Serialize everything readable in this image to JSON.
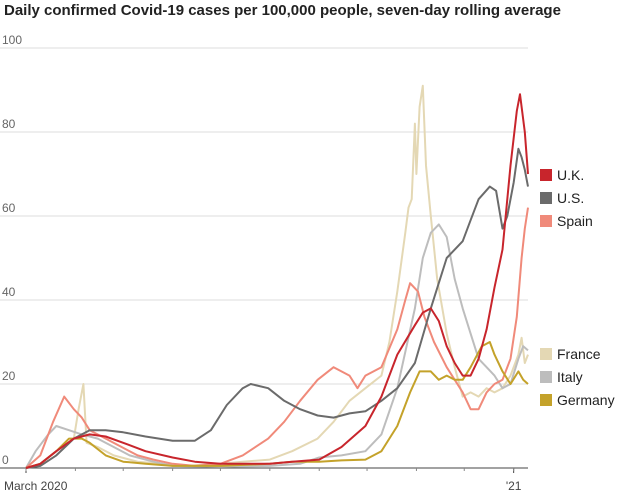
{
  "chart_data": {
    "type": "line",
    "title": "Daily confirmed Covid-19 cases per 100,000 people, seven-day rolling average",
    "xlabel": "",
    "ylabel": "",
    "ylim": [
      0,
      100
    ],
    "yticks": [
      "0",
      "20",
      "40",
      "60",
      "80",
      "100"
    ],
    "xticks": [
      {
        "date": "2020-03-01",
        "label": "March 2020"
      },
      {
        "date": "2021-01-01",
        "label": "'21"
      }
    ],
    "xlim": [
      "2020-03-01",
      "2021-01-10"
    ],
    "grid": true,
    "legend_position": "right",
    "series": [
      {
        "name": "U.K.",
        "color": "#c8252c",
        "points": [
          [
            "2020-03-01",
            0
          ],
          [
            "2020-03-10",
            1
          ],
          [
            "2020-03-20",
            4
          ],
          [
            "2020-03-31",
            7
          ],
          [
            "2020-04-10",
            8
          ],
          [
            "2020-04-20",
            7.5
          ],
          [
            "2020-05-01",
            6
          ],
          [
            "2020-05-15",
            4
          ],
          [
            "2020-06-01",
            2.5
          ],
          [
            "2020-06-15",
            1.5
          ],
          [
            "2020-07-01",
            1
          ],
          [
            "2020-07-15",
            1
          ],
          [
            "2020-08-01",
            1
          ],
          [
            "2020-08-15",
            1.5
          ],
          [
            "2020-09-01",
            2
          ],
          [
            "2020-09-15",
            5
          ],
          [
            "2020-09-30",
            10
          ],
          [
            "2020-10-10",
            17
          ],
          [
            "2020-10-20",
            27
          ],
          [
            "2020-10-31",
            34
          ],
          [
            "2020-11-05",
            37
          ],
          [
            "2020-11-10",
            38
          ],
          [
            "2020-11-15",
            35
          ],
          [
            "2020-11-20",
            29
          ],
          [
            "2020-11-25",
            25
          ],
          [
            "2020-11-30",
            22
          ],
          [
            "2020-12-05",
            22
          ],
          [
            "2020-12-10",
            26
          ],
          [
            "2020-12-15",
            33
          ],
          [
            "2020-12-20",
            43
          ],
          [
            "2020-12-25",
            52
          ],
          [
            "2020-12-30",
            72
          ],
          [
            "2021-01-03",
            85
          ],
          [
            "2021-01-05",
            89
          ],
          [
            "2021-01-08",
            80
          ],
          [
            "2021-01-10",
            70
          ]
        ]
      },
      {
        "name": "U.S.",
        "color": "#6b6b6b",
        "points": [
          [
            "2020-03-01",
            0
          ],
          [
            "2020-03-10",
            0.5
          ],
          [
            "2020-03-20",
            3
          ],
          [
            "2020-03-31",
            7
          ],
          [
            "2020-04-10",
            9
          ],
          [
            "2020-04-20",
            9
          ],
          [
            "2020-05-01",
            8.5
          ],
          [
            "2020-05-15",
            7.5
          ],
          [
            "2020-06-01",
            6.5
          ],
          [
            "2020-06-15",
            6.5
          ],
          [
            "2020-06-25",
            9
          ],
          [
            "2020-07-05",
            15
          ],
          [
            "2020-07-15",
            19
          ],
          [
            "2020-07-20",
            20
          ],
          [
            "2020-07-31",
            19
          ],
          [
            "2020-08-10",
            16
          ],
          [
            "2020-08-20",
            14
          ],
          [
            "2020-08-31",
            12.5
          ],
          [
            "2020-09-10",
            12
          ],
          [
            "2020-09-20",
            13
          ],
          [
            "2020-09-30",
            13.5
          ],
          [
            "2020-10-10",
            16
          ],
          [
            "2020-10-20",
            19
          ],
          [
            "2020-10-31",
            25
          ],
          [
            "2020-11-10",
            38
          ],
          [
            "2020-11-20",
            50
          ],
          [
            "2020-11-30",
            54
          ],
          [
            "2020-12-05",
            59
          ],
          [
            "2020-12-10",
            64
          ],
          [
            "2020-12-17",
            67
          ],
          [
            "2020-12-21",
            66
          ],
          [
            "2020-12-25",
            57
          ],
          [
            "2020-12-28",
            60
          ],
          [
            "2021-01-01",
            68
          ],
          [
            "2021-01-04",
            76
          ],
          [
            "2021-01-06",
            74
          ],
          [
            "2021-01-08",
            71
          ],
          [
            "2021-01-10",
            67
          ]
        ]
      },
      {
        "name": "Spain",
        "color": "#f08a7a",
        "points": [
          [
            "2020-03-01",
            0
          ],
          [
            "2020-03-10",
            3
          ],
          [
            "2020-03-18",
            11
          ],
          [
            "2020-03-25",
            17
          ],
          [
            "2020-03-31",
            14
          ],
          [
            "2020-04-05",
            12
          ],
          [
            "2020-04-10",
            9
          ],
          [
            "2020-04-20",
            7
          ],
          [
            "2020-04-30",
            5
          ],
          [
            "2020-05-10",
            3
          ],
          [
            "2020-05-20",
            2
          ],
          [
            "2020-06-01",
            1
          ],
          [
            "2020-06-15",
            0.5
          ],
          [
            "2020-07-01",
            1
          ],
          [
            "2020-07-15",
            3
          ],
          [
            "2020-07-31",
            7
          ],
          [
            "2020-08-10",
            11
          ],
          [
            "2020-08-20",
            16
          ],
          [
            "2020-08-31",
            21
          ],
          [
            "2020-09-10",
            24
          ],
          [
            "2020-09-20",
            22
          ],
          [
            "2020-09-25",
            19
          ],
          [
            "2020-09-30",
            22
          ],
          [
            "2020-10-10",
            24
          ],
          [
            "2020-10-20",
            33
          ],
          [
            "2020-10-25",
            40
          ],
          [
            "2020-10-28",
            44
          ],
          [
            "2020-11-02",
            42
          ],
          [
            "2020-11-06",
            36
          ],
          [
            "2020-11-12",
            30
          ],
          [
            "2020-11-20",
            24
          ],
          [
            "2020-11-30",
            18
          ],
          [
            "2020-12-05",
            14
          ],
          [
            "2020-12-10",
            14
          ],
          [
            "2020-12-15",
            18
          ],
          [
            "2020-12-20",
            20
          ],
          [
            "2020-12-25",
            21
          ],
          [
            "2020-12-30",
            26
          ],
          [
            "2021-01-03",
            36
          ],
          [
            "2021-01-06",
            50
          ],
          [
            "2021-01-08",
            57
          ],
          [
            "2021-01-10",
            62
          ]
        ]
      },
      {
        "name": "France",
        "color": "#e4d8b4",
        "points": [
          [
            "2020-03-01",
            0
          ],
          [
            "2020-03-10",
            1
          ],
          [
            "2020-03-20",
            4
          ],
          [
            "2020-03-31",
            7
          ],
          [
            "2020-04-03",
            14
          ],
          [
            "2020-04-05",
            18
          ],
          [
            "2020-04-06",
            20
          ],
          [
            "2020-04-08",
            6
          ],
          [
            "2020-04-15",
            5
          ],
          [
            "2020-04-25",
            3
          ],
          [
            "2020-05-10",
            1.5
          ],
          [
            "2020-05-25",
            1
          ],
          [
            "2020-06-10",
            0.5
          ],
          [
            "2020-07-01",
            1
          ],
          [
            "2020-07-15",
            1.5
          ],
          [
            "2020-08-01",
            2
          ],
          [
            "2020-08-15",
            4
          ],
          [
            "2020-08-31",
            7
          ],
          [
            "2020-09-10",
            11
          ],
          [
            "2020-09-20",
            16
          ],
          [
            "2020-09-30",
            19
          ],
          [
            "2020-10-10",
            22
          ],
          [
            "2020-10-15",
            30
          ],
          [
            "2020-10-20",
            42
          ],
          [
            "2020-10-25",
            56
          ],
          [
            "2020-10-27",
            62
          ],
          [
            "2020-10-29",
            64
          ],
          [
            "2020-10-31",
            82
          ],
          [
            "2020-11-01",
            70
          ],
          [
            "2020-11-03",
            86
          ],
          [
            "2020-11-05",
            91
          ],
          [
            "2020-11-07",
            72
          ],
          [
            "2020-11-10",
            60
          ],
          [
            "2020-11-14",
            45
          ],
          [
            "2020-11-20",
            32
          ],
          [
            "2020-11-25",
            24
          ],
          [
            "2020-11-30",
            17
          ],
          [
            "2020-12-05",
            18
          ],
          [
            "2020-12-10",
            17
          ],
          [
            "2020-12-15",
            19
          ],
          [
            "2020-12-20",
            18
          ],
          [
            "2020-12-25",
            19
          ],
          [
            "2020-12-30",
            22
          ],
          [
            "2021-01-04",
            27
          ],
          [
            "2021-01-06",
            31
          ],
          [
            "2021-01-08",
            25
          ],
          [
            "2021-01-10",
            27
          ]
        ]
      },
      {
        "name": "Italy",
        "color": "#bdbdbd",
        "points": [
          [
            "2020-03-01",
            0
          ],
          [
            "2020-03-07",
            4
          ],
          [
            "2020-03-15",
            8
          ],
          [
            "2020-03-20",
            10
          ],
          [
            "2020-03-28",
            9
          ],
          [
            "2020-04-05",
            8
          ],
          [
            "2020-04-15",
            7
          ],
          [
            "2020-04-25",
            5
          ],
          [
            "2020-05-05",
            3
          ],
          [
            "2020-05-20",
            1.5
          ],
          [
            "2020-06-01",
            0.5
          ],
          [
            "2020-07-01",
            0.3
          ],
          [
            "2020-08-01",
            0.5
          ],
          [
            "2020-08-20",
            1
          ],
          [
            "2020-09-01",
            2.5
          ],
          [
            "2020-09-15",
            3
          ],
          [
            "2020-09-30",
            4
          ],
          [
            "2020-10-10",
            8
          ],
          [
            "2020-10-20",
            19
          ],
          [
            "2020-10-31",
            38
          ],
          [
            "2020-11-05",
            50
          ],
          [
            "2020-11-10",
            56
          ],
          [
            "2020-11-15",
            58
          ],
          [
            "2020-11-20",
            55
          ],
          [
            "2020-11-25",
            45
          ],
          [
            "2020-11-30",
            38
          ],
          [
            "2020-12-05",
            32
          ],
          [
            "2020-12-10",
            26
          ],
          [
            "2020-12-15",
            24
          ],
          [
            "2020-12-20",
            22
          ],
          [
            "2020-12-25",
            19
          ],
          [
            "2020-12-30",
            20
          ],
          [
            "2021-01-04",
            26
          ],
          [
            "2021-01-07",
            29
          ],
          [
            "2021-01-10",
            28
          ]
        ]
      },
      {
        "name": "Germany",
        "color": "#c4a22a",
        "points": [
          [
            "2020-03-01",
            0
          ],
          [
            "2020-03-10",
            1
          ],
          [
            "2020-03-20",
            4
          ],
          [
            "2020-03-28",
            7
          ],
          [
            "2020-04-05",
            7
          ],
          [
            "2020-04-10",
            6
          ],
          [
            "2020-04-20",
            3
          ],
          [
            "2020-05-01",
            1.5
          ],
          [
            "2020-05-15",
            1
          ],
          [
            "2020-06-01",
            0.5
          ],
          [
            "2020-07-01",
            0.5
          ],
          [
            "2020-08-01",
            1
          ],
          [
            "2020-08-15",
            1.5
          ],
          [
            "2020-09-01",
            1.5
          ],
          [
            "2020-09-15",
            1.8
          ],
          [
            "2020-09-30",
            2
          ],
          [
            "2020-10-10",
            4
          ],
          [
            "2020-10-20",
            10
          ],
          [
            "2020-10-28",
            18
          ],
          [
            "2020-11-03",
            23
          ],
          [
            "2020-11-10",
            23
          ],
          [
            "2020-11-15",
            21
          ],
          [
            "2020-11-20",
            22
          ],
          [
            "2020-11-25",
            21
          ],
          [
            "2020-11-30",
            21
          ],
          [
            "2020-12-05",
            24
          ],
          [
            "2020-12-12",
            29
          ],
          [
            "2020-12-17",
            30
          ],
          [
            "2020-12-20",
            27
          ],
          [
            "2020-12-25",
            23
          ],
          [
            "2020-12-30",
            20
          ],
          [
            "2021-01-04",
            23
          ],
          [
            "2021-01-07",
            21
          ],
          [
            "2021-01-10",
            20
          ]
        ]
      }
    ]
  }
}
